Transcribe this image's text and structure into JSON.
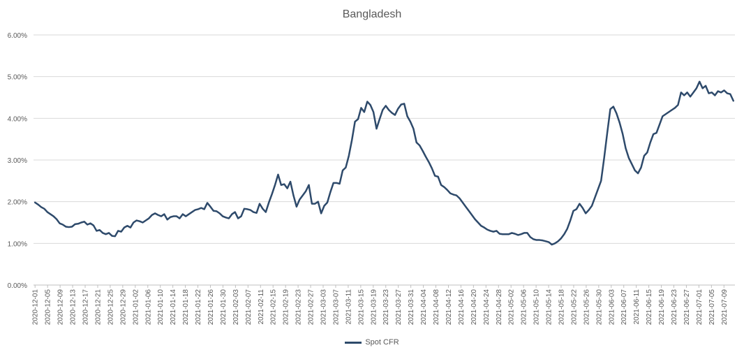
{
  "chart_data": {
    "type": "line",
    "title": "Bangladesh",
    "xlabel": "",
    "ylabel": "",
    "ylim": [
      0,
      0.06
    ],
    "yticks": [
      0,
      0.01,
      0.02,
      0.03,
      0.04,
      0.05,
      0.06
    ],
    "ytick_labels": [
      "0.00%",
      "1.00%",
      "2.00%",
      "3.00%",
      "4.00%",
      "5.00%",
      "6.00%"
    ],
    "grid": true,
    "legend_position": "bottom",
    "line_color": "#2e4a6b",
    "x_start": "2020-12-01",
    "x_end": "2021-07-12",
    "x_tick_labels": [
      "2020-12-01",
      "2020-12-05",
      "2020-12-09",
      "2020-12-13",
      "2020-12-17",
      "2020-12-21",
      "2020-12-25",
      "2020-12-29",
      "2021-01-02",
      "2021-01-06",
      "2021-01-10",
      "2021-01-14",
      "2021-01-18",
      "2021-01-22",
      "2021-01-26",
      "2021-01-30",
      "2021-02-03",
      "2021-02-07",
      "2021-02-11",
      "2021-02-15",
      "2021-02-19",
      "2021-02-23",
      "2021-02-27",
      "2021-03-03",
      "2021-03-07",
      "2021-03-11",
      "2021-03-15",
      "2021-03-19",
      "2021-03-23",
      "2021-03-27",
      "2021-03-31",
      "2021-04-04",
      "2021-04-08",
      "2021-04-12",
      "2021-04-16",
      "2021-04-20",
      "2021-04-24",
      "2021-04-28",
      "2021-05-02",
      "2021-05-06",
      "2021-05-10",
      "2021-05-14",
      "2021-05-18",
      "2021-05-22",
      "2021-05-26",
      "2021-05-30",
      "2021-06-03",
      "2021-06-07",
      "2021-06-11",
      "2021-06-15",
      "2021-06-19",
      "2021-06-23",
      "2021-06-27",
      "2021-07-01",
      "2021-07-05",
      "2021-07-09"
    ],
    "series": [
      {
        "name": "Spot CFR",
        "values": [
          0.0198,
          0.0193,
          0.0187,
          0.0183,
          0.0175,
          0.017,
          0.0165,
          0.0158,
          0.0148,
          0.0145,
          0.014,
          0.0139,
          0.014,
          0.0146,
          0.0147,
          0.015,
          0.0152,
          0.0145,
          0.0148,
          0.0143,
          0.013,
          0.0132,
          0.0125,
          0.0122,
          0.0125,
          0.0118,
          0.0117,
          0.013,
          0.0128,
          0.0138,
          0.0142,
          0.0138,
          0.015,
          0.0155,
          0.0153,
          0.015,
          0.0155,
          0.016,
          0.0168,
          0.0172,
          0.0168,
          0.0165,
          0.017,
          0.0157,
          0.0163,
          0.0165,
          0.0165,
          0.016,
          0.017,
          0.0165,
          0.017,
          0.0175,
          0.018,
          0.0182,
          0.0185,
          0.0182,
          0.0197,
          0.0188,
          0.0178,
          0.0177,
          0.0172,
          0.0165,
          0.0162,
          0.016,
          0.017,
          0.0175,
          0.016,
          0.0165,
          0.0183,
          0.0182,
          0.018,
          0.0175,
          0.0173,
          0.0195,
          0.0183,
          0.0175,
          0.0198,
          0.0218,
          0.024,
          0.0265,
          0.024,
          0.0242,
          0.0232,
          0.0248,
          0.0215,
          0.0188,
          0.0205,
          0.0215,
          0.0225,
          0.024,
          0.0195,
          0.0195,
          0.02,
          0.0172,
          0.019,
          0.0198,
          0.0223,
          0.0245,
          0.0245,
          0.0243,
          0.0275,
          0.0282,
          0.031,
          0.0348,
          0.0392,
          0.0398,
          0.0425,
          0.0415,
          0.044,
          0.0432,
          0.0415,
          0.0375,
          0.0398,
          0.042,
          0.043,
          0.042,
          0.0413,
          0.0408,
          0.0423,
          0.0433,
          0.0435,
          0.0405,
          0.0392,
          0.0375,
          0.0342,
          0.0335,
          0.0322,
          0.0308,
          0.0295,
          0.028,
          0.0262,
          0.026,
          0.024,
          0.0235,
          0.0228,
          0.022,
          0.0217,
          0.0215,
          0.0208,
          0.0198,
          0.0188,
          0.0178,
          0.0168,
          0.0158,
          0.015,
          0.0142,
          0.0138,
          0.0133,
          0.013,
          0.0128,
          0.013,
          0.0123,
          0.0122,
          0.0122,
          0.0122,
          0.0125,
          0.0123,
          0.012,
          0.0122,
          0.0125,
          0.0125,
          0.0115,
          0.011,
          0.0108,
          0.0108,
          0.0107,
          0.0105,
          0.0103,
          0.0097,
          0.01,
          0.0105,
          0.0112,
          0.0122,
          0.0135,
          0.0155,
          0.0178,
          0.0182,
          0.0195,
          0.0185,
          0.0172,
          0.018,
          0.019,
          0.021,
          0.023,
          0.025,
          0.0305,
          0.0365,
          0.0422,
          0.0428,
          0.0412,
          0.039,
          0.0363,
          0.0328,
          0.0305,
          0.029,
          0.0275,
          0.0268,
          0.0282,
          0.031,
          0.0318,
          0.0342,
          0.0362,
          0.0365,
          0.0385,
          0.0405,
          0.041,
          0.0415,
          0.042,
          0.0425,
          0.0432,
          0.0462,
          0.0455,
          0.0462,
          0.0452,
          0.0462,
          0.0472,
          0.0488,
          0.0472,
          0.0478,
          0.046,
          0.0462,
          0.0455,
          0.0465,
          0.0462,
          0.0467,
          0.046,
          0.0458,
          0.0442
        ]
      }
    ]
  }
}
